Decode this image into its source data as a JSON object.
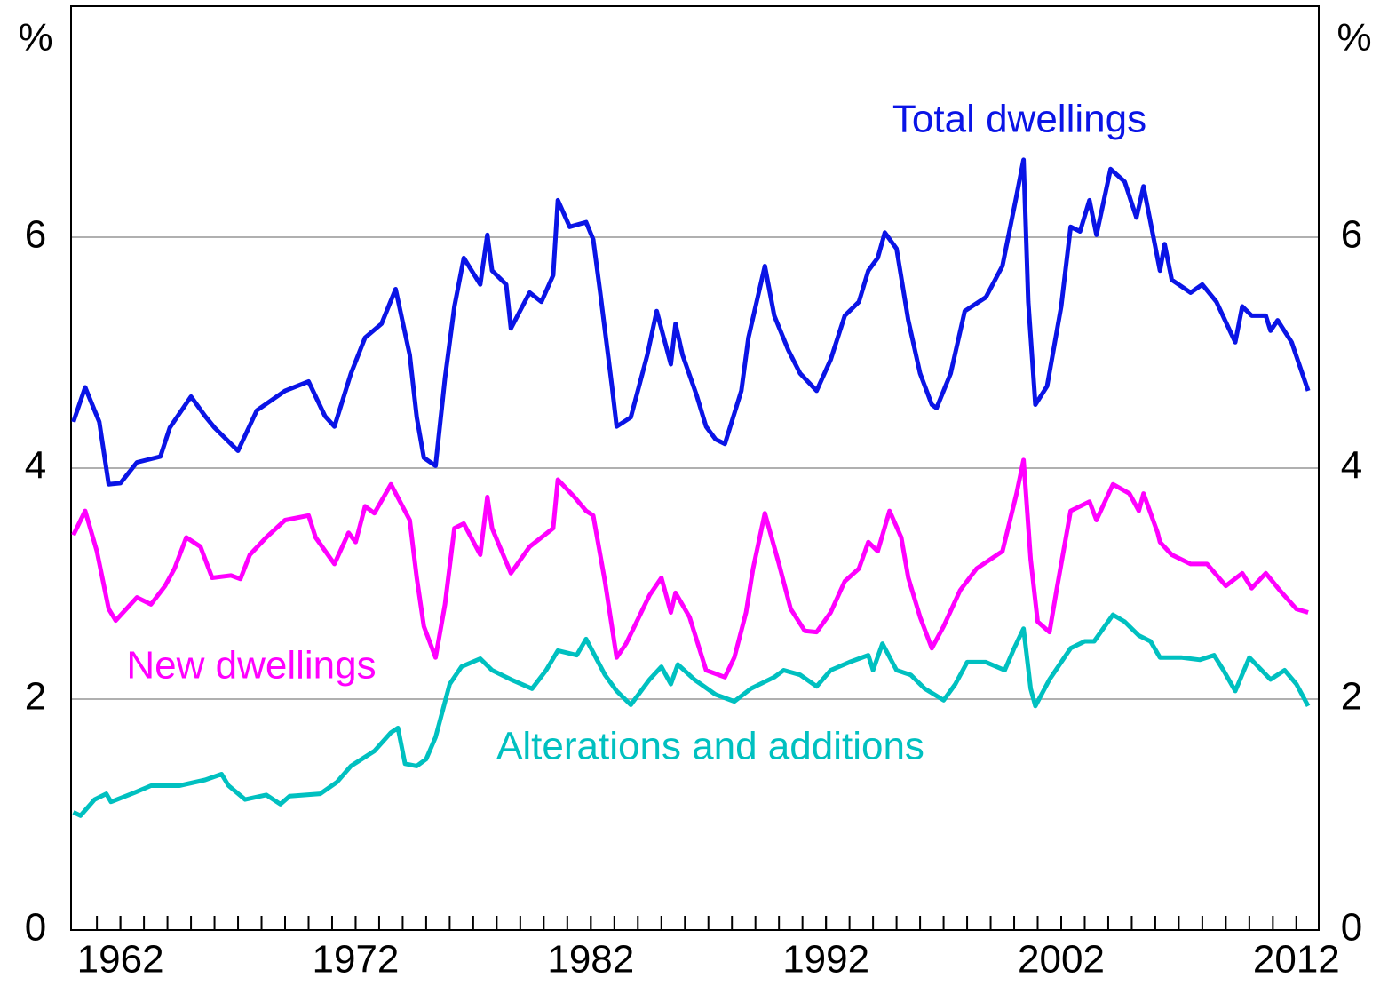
{
  "chart_data": {
    "type": "line",
    "ylabel": "%",
    "y2label": "%",
    "xlim": [
      1959.9,
      2012.95
    ],
    "xticks": [
      1962,
      1972,
      1982,
      1992,
      2002,
      2012
    ],
    "xminorticks": [
      1961,
      1962,
      1963,
      1964,
      1965,
      1966,
      1967,
      1968,
      1969,
      1970,
      1971,
      1972,
      1973,
      1974,
      1975,
      1976,
      1977,
      1978,
      1979,
      1980,
      1981,
      1982,
      1983,
      1984,
      1985,
      1986,
      1987,
      1988,
      1989,
      1990,
      1991,
      1992,
      1993,
      1994,
      1995,
      1996,
      1997,
      1998,
      1999,
      2000,
      2001,
      2002,
      2003,
      2004,
      2005,
      2006,
      2007,
      2008,
      2009,
      2010,
      2011,
      2012
    ],
    "ylim": [
      0,
      8
    ],
    "yticks": [
      0,
      2,
      4,
      6
    ],
    "y2lim": [
      0,
      8
    ],
    "y2ticks": [
      0,
      2,
      4,
      6
    ],
    "grid": true,
    "series": [
      {
        "name": "Total dwellings",
        "color": "#0a14e6",
        "x": [
          1960.0,
          1960.5,
          1961.1,
          1961.5,
          1962,
          1962.7,
          1963.7,
          1964.1,
          1965,
          1965.6,
          1966,
          1966.5,
          1967,
          1967.8,
          1969,
          1970,
          1970.7,
          1971.1,
          1971.8,
          1972.4,
          1973.1,
          1973.7,
          1974.3,
          1974.6,
          1974.9,
          1975.4,
          1975.8,
          1976.2,
          1976.6,
          1977.3,
          1977.6,
          1977.8,
          1978.4,
          1978.6,
          1979.4,
          1979.9,
          1980.4,
          1980.6,
          1981.1,
          1981.8,
          1982.1,
          1982.4,
          1982.9,
          1983.1,
          1983.7,
          1984.4,
          1984.8,
          1985.4,
          1985.6,
          1985.9,
          1986.5,
          1986.9,
          1987.3,
          1987.7,
          1988.4,
          1988.7,
          1989.4,
          1989.8,
          1990.4,
          1990.9,
          1991.6,
          1992.2,
          1992.8,
          1993.4,
          1993.8,
          1994.2,
          1994.5,
          1995,
          1995.5,
          1996,
          1996.5,
          1996.7,
          1997.3,
          1997.9,
          1998.8,
          1999.5,
          2000.1,
          2000.4,
          2000.6,
          2000.9,
          2001.4,
          2002,
          2002.4,
          2002.8,
          2003.2,
          2003.5,
          2004.1,
          2004.7,
          2005.2,
          2005.5,
          2006.2,
          2006.4,
          2006.7,
          2007.5,
          2008,
          2008.6,
          2009.4,
          2009.7,
          2010.1,
          2010.7,
          2010.9,
          2011.2,
          2011.8,
          2012.5
        ],
        "values": [
          4.4,
          4.7,
          4.4,
          3.86,
          3.87,
          4.05,
          4.1,
          4.35,
          4.62,
          4.45,
          4.35,
          4.25,
          4.15,
          4.5,
          4.67,
          4.75,
          4.45,
          4.36,
          4.82,
          5.13,
          5.25,
          5.55,
          4.98,
          4.44,
          4.09,
          4.02,
          4.78,
          5.4,
          5.82,
          5.59,
          6.02,
          5.71,
          5.59,
          5.21,
          5.52,
          5.44,
          5.67,
          6.32,
          6.09,
          6.13,
          5.98,
          5.52,
          4.71,
          4.36,
          4.44,
          4.98,
          5.36,
          4.9,
          5.25,
          4.98,
          4.63,
          4.36,
          4.25,
          4.21,
          4.67,
          5.13,
          5.75,
          5.32,
          5.02,
          4.82,
          4.67,
          4.94,
          5.32,
          5.44,
          5.71,
          5.82,
          6.04,
          5.9,
          5.28,
          4.82,
          4.55,
          4.52,
          4.82,
          5.36,
          5.48,
          5.75,
          6.36,
          6.67,
          5.44,
          4.55,
          4.71,
          5.4,
          6.09,
          6.05,
          6.32,
          6.02,
          6.59,
          6.48,
          6.17,
          6.44,
          5.71,
          5.94,
          5.63,
          5.52,
          5.59,
          5.44,
          5.09,
          5.4,
          5.32,
          5.32,
          5.19,
          5.28,
          5.09,
          4.67
        ]
      },
      {
        "name": "New dwellings",
        "color": "#ff00ff",
        "x": [
          1960.0,
          1960.5,
          1961,
          1961.5,
          1961.8,
          1962.7,
          1963.3,
          1963.9,
          1964.3,
          1964.8,
          1965.4,
          1965.9,
          1966.7,
          1967.1,
          1967.5,
          1968.2,
          1969,
          1970,
          1970.3,
          1971.1,
          1971.7,
          1972,
          1972.4,
          1972.8,
          1973.5,
          1974.3,
          1974.6,
          1974.9,
          1975.4,
          1975.8,
          1976.2,
          1976.6,
          1977.3,
          1977.6,
          1977.8,
          1978.6,
          1979.4,
          1979.9,
          1980.4,
          1980.6,
          1981.3,
          1981.8,
          1982.1,
          1982.6,
          1983.1,
          1983.5,
          1984.5,
          1985,
          1985.4,
          1985.6,
          1986.2,
          1986.9,
          1987.7,
          1988.1,
          1988.6,
          1988.9,
          1989.4,
          1990,
          1990.5,
          1991.1,
          1991.6,
          1992.2,
          1992.8,
          1993.4,
          1993.8,
          1994.2,
          1994.7,
          1995.2,
          1995.5,
          1996,
          1996.5,
          1997,
          1997.7,
          1998.4,
          1999.5,
          2000.1,
          2000.4,
          2000.7,
          2001,
          2001.5,
          2001.8,
          2002.4,
          2003.2,
          2003.5,
          2004.2,
          2004.9,
          2005.3,
          2005.5,
          2006.1,
          2006.2,
          2006.7,
          2007.5,
          2008.2,
          2009,
          2009.7,
          2010.1,
          2010.7,
          2011.3,
          2012,
          2012.5
        ],
        "values": [
          3.42,
          3.63,
          3.28,
          2.78,
          2.68,
          2.88,
          2.82,
          2.98,
          3.13,
          3.4,
          3.32,
          3.05,
          3.07,
          3.04,
          3.25,
          3.4,
          3.55,
          3.59,
          3.4,
          3.17,
          3.44,
          3.36,
          3.67,
          3.61,
          3.86,
          3.55,
          3.05,
          2.63,
          2.36,
          2.82,
          3.48,
          3.52,
          3.25,
          3.75,
          3.48,
          3.09,
          3.32,
          3.4,
          3.48,
          3.9,
          3.75,
          3.63,
          3.59,
          3.02,
          2.36,
          2.48,
          2.9,
          3.05,
          2.75,
          2.92,
          2.71,
          2.25,
          2.19,
          2.36,
          2.75,
          3.13,
          3.61,
          3.17,
          2.78,
          2.59,
          2.58,
          2.75,
          3.02,
          3.13,
          3.36,
          3.28,
          3.63,
          3.4,
          3.05,
          2.71,
          2.44,
          2.63,
          2.94,
          3.13,
          3.28,
          3.78,
          4.07,
          3.21,
          2.67,
          2.58,
          2.94,
          3.63,
          3.71,
          3.55,
          3.86,
          3.78,
          3.63,
          3.78,
          3.44,
          3.36,
          3.25,
          3.17,
          3.17,
          2.98,
          3.09,
          2.96,
          3.09,
          2.94,
          2.78,
          2.75
        ]
      },
      {
        "name": "Alterations and additions",
        "color": "#00c0c0",
        "x": [
          1960.0,
          1960.3,
          1960.9,
          1961.4,
          1961.6,
          1962.6,
          1963.3,
          1964.5,
          1965.6,
          1966.3,
          1966.6,
          1967.3,
          1968.2,
          1968.8,
          1969.2,
          1970.5,
          1971.2,
          1971.8,
          1972.8,
          1973.5,
          1973.8,
          1974.1,
          1974.6,
          1975,
          1975.4,
          1976,
          1976.5,
          1977.3,
          1977.8,
          1978.6,
          1979.5,
          1980.1,
          1980.6,
          1981.4,
          1981.8,
          1982.6,
          1983.1,
          1983.7,
          1984.5,
          1985,
          1985.4,
          1985.7,
          1986.4,
          1987.3,
          1988.1,
          1988.8,
          1989.8,
          1990.2,
          1990.9,
          1991.6,
          1992.2,
          1993,
          1993.8,
          1994,
          1994.4,
          1995,
          1995.6,
          1996.2,
          1997,
          1997.5,
          1998,
          1998.8,
          1999.6,
          2000,
          2000.4,
          2000.7,
          2000.9,
          2001.5,
          2002.4,
          2003,
          2003.4,
          2004.2,
          2004.7,
          2005.3,
          2005.8,
          2006.2,
          2007.1,
          2007.9,
          2008.5,
          2008.9,
          2009.4,
          2010,
          2010.9,
          2011.5,
          2012,
          2012.5
        ],
        "values": [
          1.02,
          0.99,
          1.13,
          1.18,
          1.11,
          1.19,
          1.25,
          1.25,
          1.3,
          1.35,
          1.25,
          1.13,
          1.17,
          1.09,
          1.16,
          1.18,
          1.28,
          1.42,
          1.55,
          1.71,
          1.75,
          1.44,
          1.42,
          1.48,
          1.67,
          2.13,
          2.28,
          2.35,
          2.25,
          2.17,
          2.09,
          2.25,
          2.42,
          2.38,
          2.52,
          2.21,
          2.07,
          1.95,
          2.17,
          2.28,
          2.13,
          2.3,
          2.17,
          2.04,
          1.98,
          2.09,
          2.19,
          2.25,
          2.21,
          2.11,
          2.25,
          2.32,
          2.38,
          2.25,
          2.48,
          2.25,
          2.21,
          2.09,
          1.99,
          2.13,
          2.32,
          2.32,
          2.25,
          2.44,
          2.61,
          2.09,
          1.94,
          2.17,
          2.44,
          2.5,
          2.5,
          2.73,
          2.67,
          2.55,
          2.5,
          2.36,
          2.36,
          2.34,
          2.38,
          2.25,
          2.07,
          2.36,
          2.17,
          2.25,
          2.13,
          1.94
        ]
      }
    ]
  }
}
